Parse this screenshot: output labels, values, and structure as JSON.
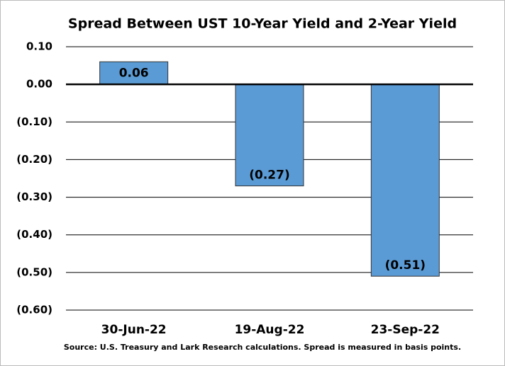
{
  "chart_data": {
    "type": "bar",
    "title": "Spread Between UST 10-Year Yield and 2-Year Yield",
    "categories": [
      "30-Jun-22",
      "19-Aug-22",
      "23-Sep-22"
    ],
    "values": [
      0.06,
      -0.27,
      -0.51
    ],
    "value_labels": [
      "0.06",
      "(0.27)",
      "(0.51)"
    ],
    "color": "#5b9bd5",
    "ylim": [
      -0.6,
      0.1
    ],
    "yticks": [
      {
        "value": 0.1,
        "label": "0.10"
      },
      {
        "value": 0,
        "label": "0.00"
      },
      {
        "value": -0.1,
        "label": "(0.10)"
      },
      {
        "value": -0.2,
        "label": "(0.20)"
      },
      {
        "value": -0.3,
        "label": "(0.30)"
      },
      {
        "value": -0.4,
        "label": "(0.40)"
      },
      {
        "value": -0.5,
        "label": "(0.50)"
      },
      {
        "value": -0.6,
        "label": "(0.60)"
      }
    ],
    "grid": true,
    "note": "Source:  U.S. Treasury and Lark Research calculations.  Spread is measured in basis points."
  }
}
